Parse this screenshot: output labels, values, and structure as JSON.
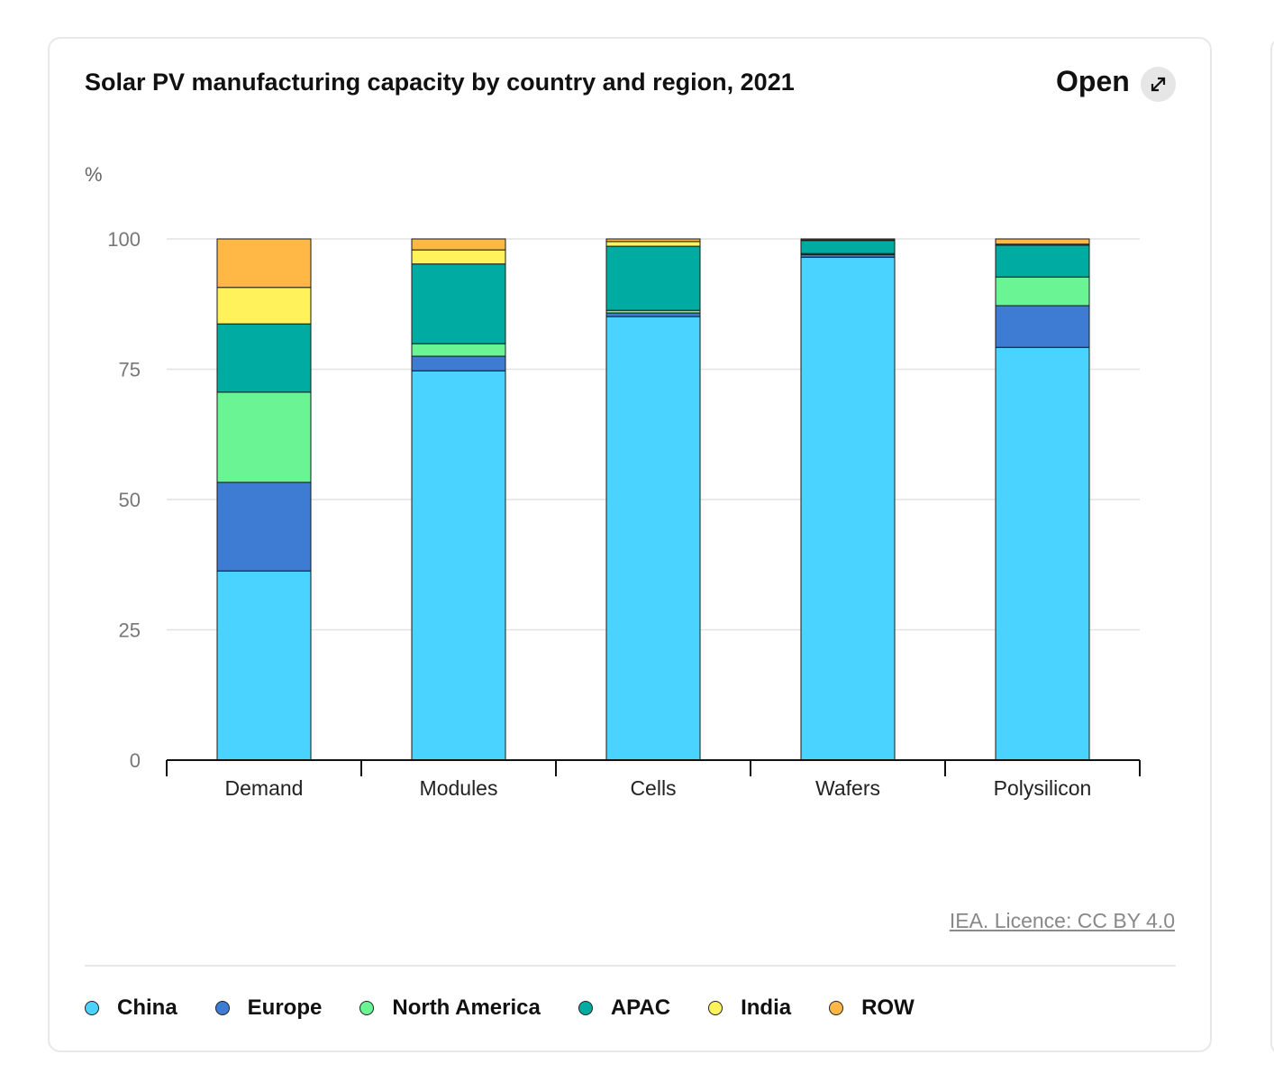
{
  "header": {
    "title": "Solar PV manufacturing capacity by country and region, 2021",
    "open_label": "Open"
  },
  "credit": "IEA. Licence: CC BY 4.0",
  "chart_data": {
    "type": "bar",
    "stacked": true,
    "title": "Solar PV manufacturing capacity by country and region, 2021",
    "ylabel": "%",
    "xlabel": "",
    "ylim": [
      0,
      100
    ],
    "yticks": [
      0,
      25,
      50,
      75,
      100
    ],
    "grid": true,
    "legend_position": "bottom",
    "categories": [
      "Demand",
      "Modules",
      "Cells",
      "Wafers",
      "Polysilicon"
    ],
    "series": [
      {
        "name": "China",
        "color": "#4bd3ff",
        "values": [
          36.3,
          74.7,
          85.1,
          96.5,
          79.2
        ]
      },
      {
        "name": "Europe",
        "color": "#3e7bd3",
        "values": [
          17.0,
          2.8,
          0.7,
          0.5,
          8.0
        ]
      },
      {
        "name": "North America",
        "color": "#6af493",
        "values": [
          17.3,
          2.4,
          0.5,
          0.2,
          5.5
        ]
      },
      {
        "name": "APAC",
        "color": "#00aca1",
        "values": [
          13.1,
          15.3,
          12.3,
          2.5,
          6.1
        ]
      },
      {
        "name": "India",
        "color": "#fff25a",
        "values": [
          7.0,
          2.7,
          0.9,
          0.1,
          0.2
        ]
      },
      {
        "name": "ROW",
        "color": "#ffb845",
        "values": [
          9.3,
          2.1,
          0.5,
          0.2,
          1.0
        ]
      }
    ]
  }
}
